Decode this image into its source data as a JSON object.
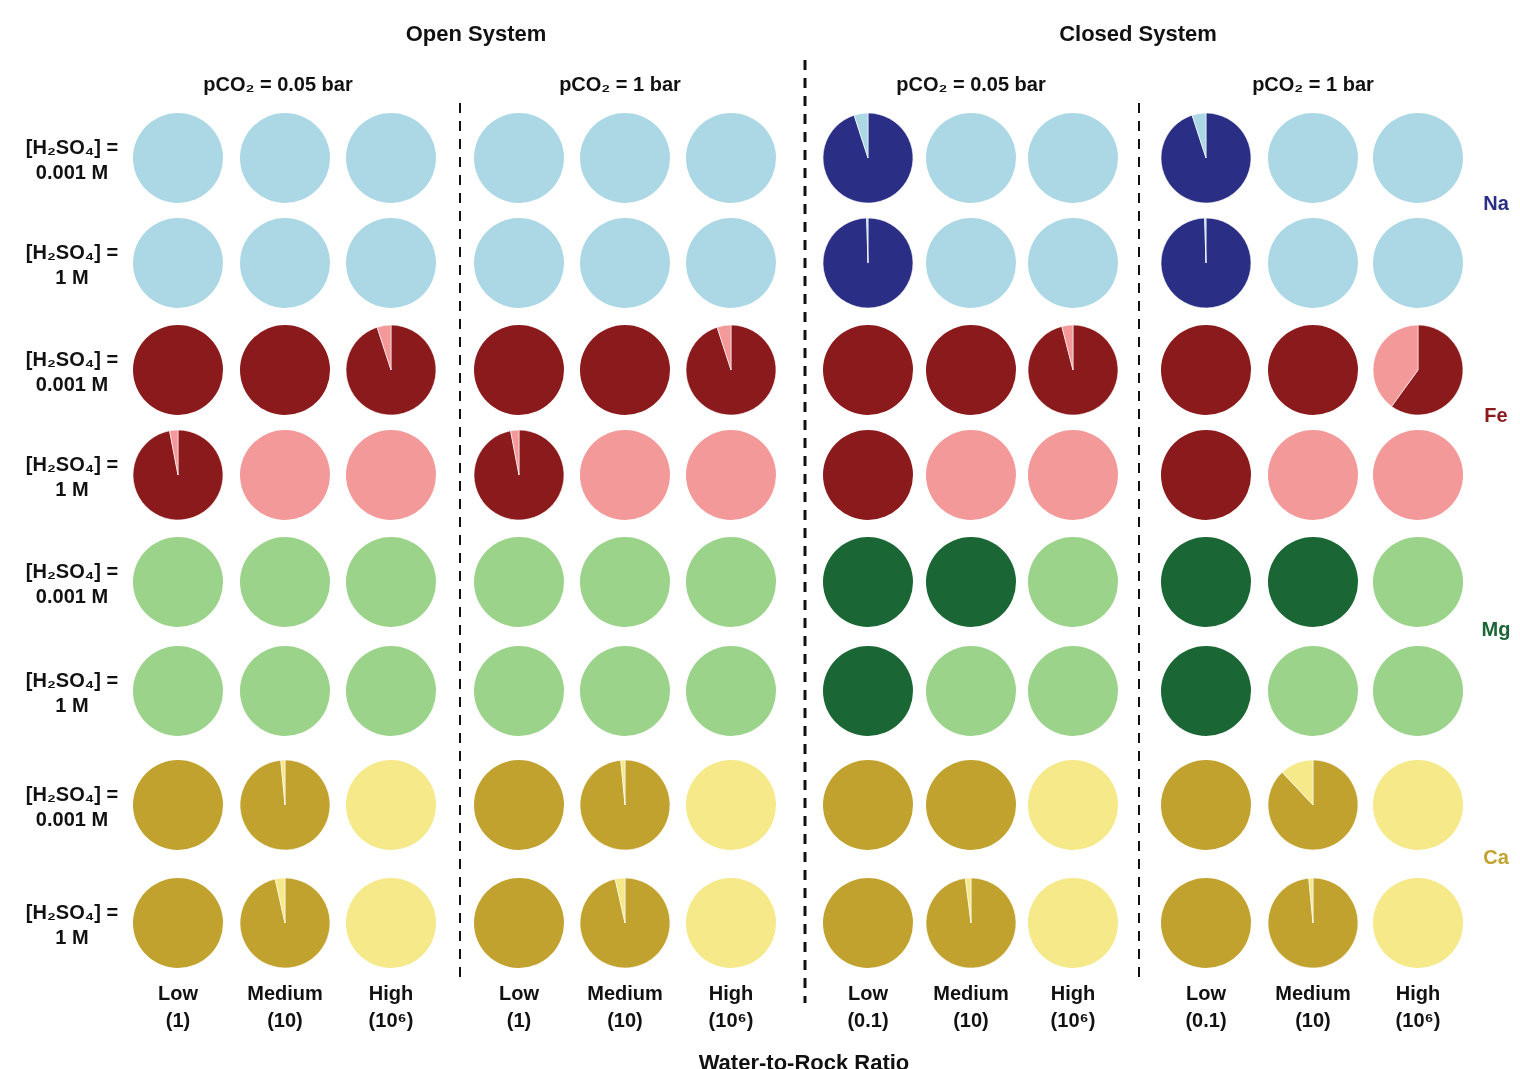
{
  "chart_data": [
    {
      "type": "other",
      "xlabel": "Water-to-Rock Ratio",
      "annotations": [
        "Open System",
        "Closed System",
        "pCO₂ = 0.05 bar",
        "pCO₂ = 1 bar",
        "pCO₂ = 0.05 bar",
        "pCO₂ = 1 bar",
        "[H₂SO₄] = 0.001 M",
        "[H₂SO₄] = 1 M",
        "[H₂SO₄] = 0.001 M",
        "[H₂SO₄] = 1 M",
        "[H₂SO₄] = 0.001 M",
        "[H₂SO₄] = 1 M",
        "[H₂SO₄] = 0.001 M",
        "[H₂SO₄] = 1 M",
        "Low (1)",
        "Medium (10)",
        "High (10⁶)",
        "Low (1)",
        "Medium (10)",
        "High (10⁶)",
        "Low (0.1)",
        "Medium (10)",
        "High (10⁶)",
        "Low (0.1)",
        "Medium (10)",
        "High (10⁶)",
        "Na",
        "Fe",
        "Mg",
        "Ca"
      ],
      "colors": [
        "#2a2f85",
        "#8b1a1c",
        "#1a6634",
        "#c1a22f"
      ]
    },
    {
      "type": "pie",
      "categories": [
        null,
        null
      ],
      "colors": [
        "#2a2f85",
        "#acd8e6"
      ],
      "series": [
        {
          "values": [
            0,
            100
          ]
        },
        {
          "values": [
            0,
            100
          ]
        },
        {
          "values": [
            0,
            100
          ]
        },
        {
          "values": [
            0,
            100
          ]
        },
        {
          "values": [
            0,
            100
          ]
        },
        {
          "values": [
            0,
            100
          ]
        },
        {
          "values": [
            95,
            5
          ]
        },
        {
          "values": [
            0,
            100
          ]
        },
        {
          "values": [
            0,
            100
          ]
        },
        {
          "values": [
            95,
            5
          ]
        },
        {
          "values": [
            0,
            100
          ]
        },
        {
          "values": [
            0,
            100
          ]
        }
      ]
    },
    {
      "type": "pie",
      "categories": [
        null,
        null
      ],
      "colors": [
        "#2a2f85",
        "#acd8e6"
      ],
      "series": [
        {
          "values": [
            0,
            100
          ]
        },
        {
          "values": [
            0,
            100
          ]
        },
        {
          "values": [
            0,
            100
          ]
        },
        {
          "values": [
            0,
            100
          ]
        },
        {
          "values": [
            0,
            100
          ]
        },
        {
          "values": [
            0,
            100
          ]
        },
        {
          "values": [
            99.5,
            0.5
          ]
        },
        {
          "values": [
            0,
            100
          ]
        },
        {
          "values": [
            0,
            100
          ]
        },
        {
          "values": [
            99.5,
            0.5
          ]
        },
        {
          "values": [
            0,
            100
          ]
        },
        {
          "values": [
            0,
            100
          ]
        }
      ]
    },
    {
      "type": "pie",
      "categories": [
        null,
        null
      ],
      "colors": [
        "#8b1a1c",
        "#f4999a"
      ],
      "series": [
        {
          "values": [
            100,
            0
          ]
        },
        {
          "values": [
            100,
            0
          ]
        },
        {
          "values": [
            95,
            5
          ]
        },
        {
          "values": [
            100,
            0
          ]
        },
        {
          "values": [
            100,
            0
          ]
        },
        {
          "values": [
            95,
            5
          ]
        },
        {
          "values": [
            100,
            0
          ]
        },
        {
          "values": [
            100,
            0
          ]
        },
        {
          "values": [
            96,
            4
          ]
        },
        {
          "values": [
            100,
            0
          ]
        },
        {
          "values": [
            100,
            0
          ]
        },
        {
          "values": [
            60,
            40
          ]
        }
      ]
    },
    {
      "type": "pie",
      "categories": [
        null,
        null
      ],
      "colors": [
        "#8b1a1c",
        "#f4999a"
      ],
      "series": [
        {
          "values": [
            97,
            3
          ]
        },
        {
          "values": [
            0,
            100
          ]
        },
        {
          "values": [
            0,
            100
          ]
        },
        {
          "values": [
            97,
            3
          ]
        },
        {
          "values": [
            0,
            100
          ]
        },
        {
          "values": [
            0,
            100
          ]
        },
        {
          "values": [
            100,
            0
          ]
        },
        {
          "values": [
            0,
            100
          ]
        },
        {
          "values": [
            0,
            100
          ]
        },
        {
          "values": [
            100,
            0
          ]
        },
        {
          "values": [
            0,
            100
          ]
        },
        {
          "values": [
            0,
            100
          ]
        }
      ]
    },
    {
      "type": "pie",
      "categories": [
        null,
        null
      ],
      "colors": [
        "#1a6634",
        "#9bd38a"
      ],
      "series": [
        {
          "values": [
            0,
            100
          ]
        },
        {
          "values": [
            0,
            100
          ]
        },
        {
          "values": [
            0,
            100
          ]
        },
        {
          "values": [
            0,
            100
          ]
        },
        {
          "values": [
            0,
            100
          ]
        },
        {
          "values": [
            0,
            100
          ]
        },
        {
          "values": [
            100,
            0
          ]
        },
        {
          "values": [
            100,
            0
          ]
        },
        {
          "values": [
            0,
            100
          ]
        },
        {
          "values": [
            100,
            0
          ]
        },
        {
          "values": [
            100,
            0
          ]
        },
        {
          "values": [
            0,
            100
          ]
        }
      ]
    },
    {
      "type": "pie",
      "categories": [
        null,
        null
      ],
      "colors": [
        "#1a6634",
        "#9bd38a"
      ],
      "series": [
        {
          "values": [
            0,
            100
          ]
        },
        {
          "values": [
            0,
            100
          ]
        },
        {
          "values": [
            0,
            100
          ]
        },
        {
          "values": [
            0,
            100
          ]
        },
        {
          "values": [
            0,
            100
          ]
        },
        {
          "values": [
            0,
            100
          ]
        },
        {
          "values": [
            100,
            0
          ]
        },
        {
          "values": [
            0,
            100
          ]
        },
        {
          "values": [
            0,
            100
          ]
        },
        {
          "values": [
            100,
            0
          ]
        },
        {
          "values": [
            0,
            100
          ]
        },
        {
          "values": [
            0,
            100
          ]
        }
      ]
    },
    {
      "type": "pie",
      "categories": [
        null,
        null
      ],
      "colors": [
        "#c1a22f",
        "#f5e98a"
      ],
      "series": [
        {
          "values": [
            100,
            0
          ]
        },
        {
          "values": [
            98.5,
            1.5
          ]
        },
        {
          "values": [
            0,
            100
          ]
        },
        {
          "values": [
            100,
            0
          ]
        },
        {
          "values": [
            98.5,
            1.5
          ]
        },
        {
          "values": [
            0,
            100
          ]
        },
        {
          "values": [
            100,
            0
          ]
        },
        {
          "values": [
            100,
            0
          ]
        },
        {
          "values": [
            0,
            100
          ]
        },
        {
          "values": [
            100,
            0
          ]
        },
        {
          "values": [
            88,
            12
          ]
        },
        {
          "values": [
            0,
            100
          ]
        }
      ]
    },
    {
      "type": "pie",
      "categories": [
        null,
        null
      ],
      "colors": [
        "#c1a22f",
        "#f5e98a"
      ],
      "series": [
        {
          "values": [
            100,
            0
          ]
        },
        {
          "values": [
            96.5,
            3.5
          ]
        },
        {
          "values": [
            0,
            100
          ]
        },
        {
          "values": [
            100,
            0
          ]
        },
        {
          "values": [
            96.5,
            3.5
          ]
        },
        {
          "values": [
            0,
            100
          ]
        },
        {
          "values": [
            100,
            0
          ]
        },
        {
          "values": [
            98,
            2
          ]
        },
        {
          "values": [
            0,
            100
          ]
        },
        {
          "values": [
            100,
            0
          ]
        },
        {
          "values": [
            98.5,
            1.5
          ]
        },
        {
          "values": [
            0,
            100
          ]
        }
      ]
    }
  ]
}
